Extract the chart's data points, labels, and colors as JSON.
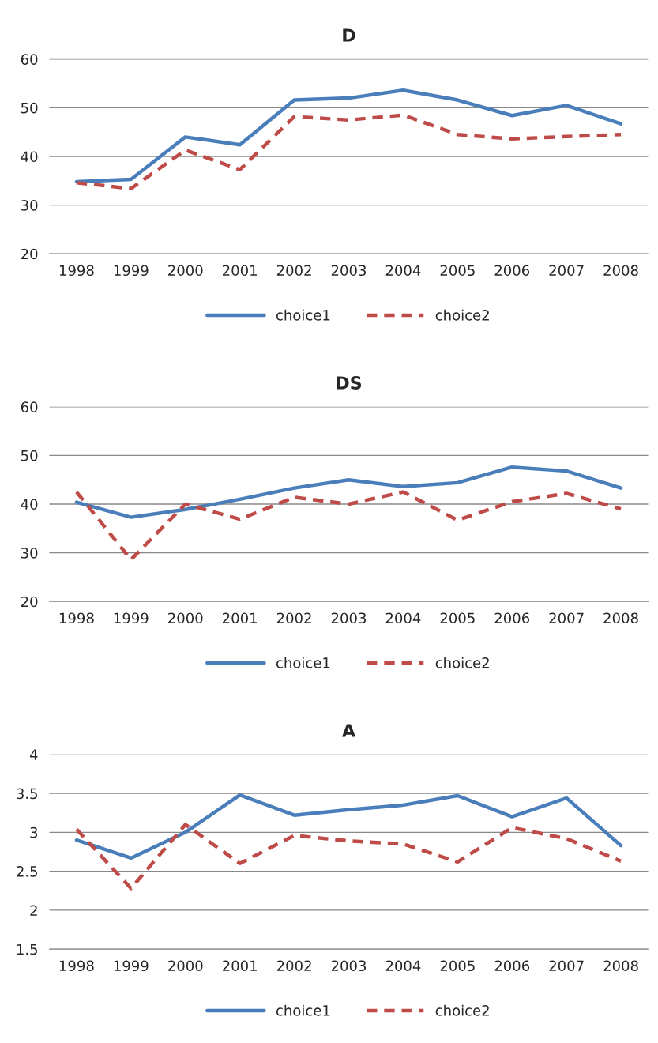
{
  "chart_data": [
    {
      "type": "line",
      "title": "D",
      "categories": [
        "1998",
        "1999",
        "2000",
        "2001",
        "2002",
        "2003",
        "2004",
        "2005",
        "2006",
        "2007",
        "2008"
      ],
      "ylim": [
        20,
        60
      ],
      "yticks": [
        20,
        30,
        40,
        50,
        60
      ],
      "grid": "y",
      "legend": "bottom",
      "series": [
        {
          "name": "choice1",
          "color": "#4a7ebb",
          "line_style": "solid",
          "values": [
            34.8,
            35.3,
            44.0,
            42.4,
            51.6,
            52.0,
            53.6,
            51.6,
            48.4,
            50.5,
            46.7
          ]
        },
        {
          "name": "choice2",
          "color": "#be4b48",
          "line_style": "dashed",
          "values": [
            34.6,
            33.4,
            41.3,
            37.3,
            48.2,
            47.5,
            48.5,
            44.5,
            43.6,
            44.1,
            44.5
          ]
        }
      ]
    },
    {
      "type": "line",
      "title": "DS",
      "categories": [
        "1998",
        "1999",
        "2000",
        "2001",
        "2002",
        "2003",
        "2004",
        "2005",
        "2006",
        "2007",
        "2008"
      ],
      "ylim": [
        20,
        60
      ],
      "yticks": [
        20,
        30,
        40,
        50,
        60
      ],
      "grid": "y",
      "legend": "bottom",
      "series": [
        {
          "name": "choice1",
          "color": "#4a7ebb",
          "line_style": "solid",
          "values": [
            40.4,
            37.3,
            38.9,
            41.0,
            43.3,
            45.0,
            43.6,
            44.4,
            47.6,
            46.8,
            43.3
          ]
        },
        {
          "name": "choice2",
          "color": "#be4b48",
          "line_style": "dashed",
          "values": [
            42.5,
            28.6,
            40.0,
            36.9,
            41.4,
            40.0,
            42.5,
            36.7,
            40.5,
            42.2,
            39.0
          ]
        }
      ]
    },
    {
      "type": "line",
      "title": "A",
      "categories": [
        "1998",
        "1999",
        "2000",
        "2001",
        "2002",
        "2003",
        "2004",
        "2005",
        "2006",
        "2007",
        "2008"
      ],
      "ylim": [
        1.5,
        4
      ],
      "yticks": [
        1.5,
        2,
        2.5,
        3,
        3.5,
        4
      ],
      "grid": "y",
      "legend": "bottom",
      "series": [
        {
          "name": "choice1",
          "color": "#4a7ebb",
          "line_style": "solid",
          "values": [
            2.9,
            2.67,
            3.0,
            3.48,
            3.22,
            3.29,
            3.35,
            3.47,
            3.2,
            3.44,
            2.83
          ]
        },
        {
          "name": "choice2",
          "color": "#be4b48",
          "line_style": "dashed",
          "values": [
            3.04,
            2.28,
            3.1,
            2.6,
            2.96,
            2.89,
            2.85,
            2.62,
            3.06,
            2.92,
            2.63
          ]
        }
      ]
    }
  ]
}
